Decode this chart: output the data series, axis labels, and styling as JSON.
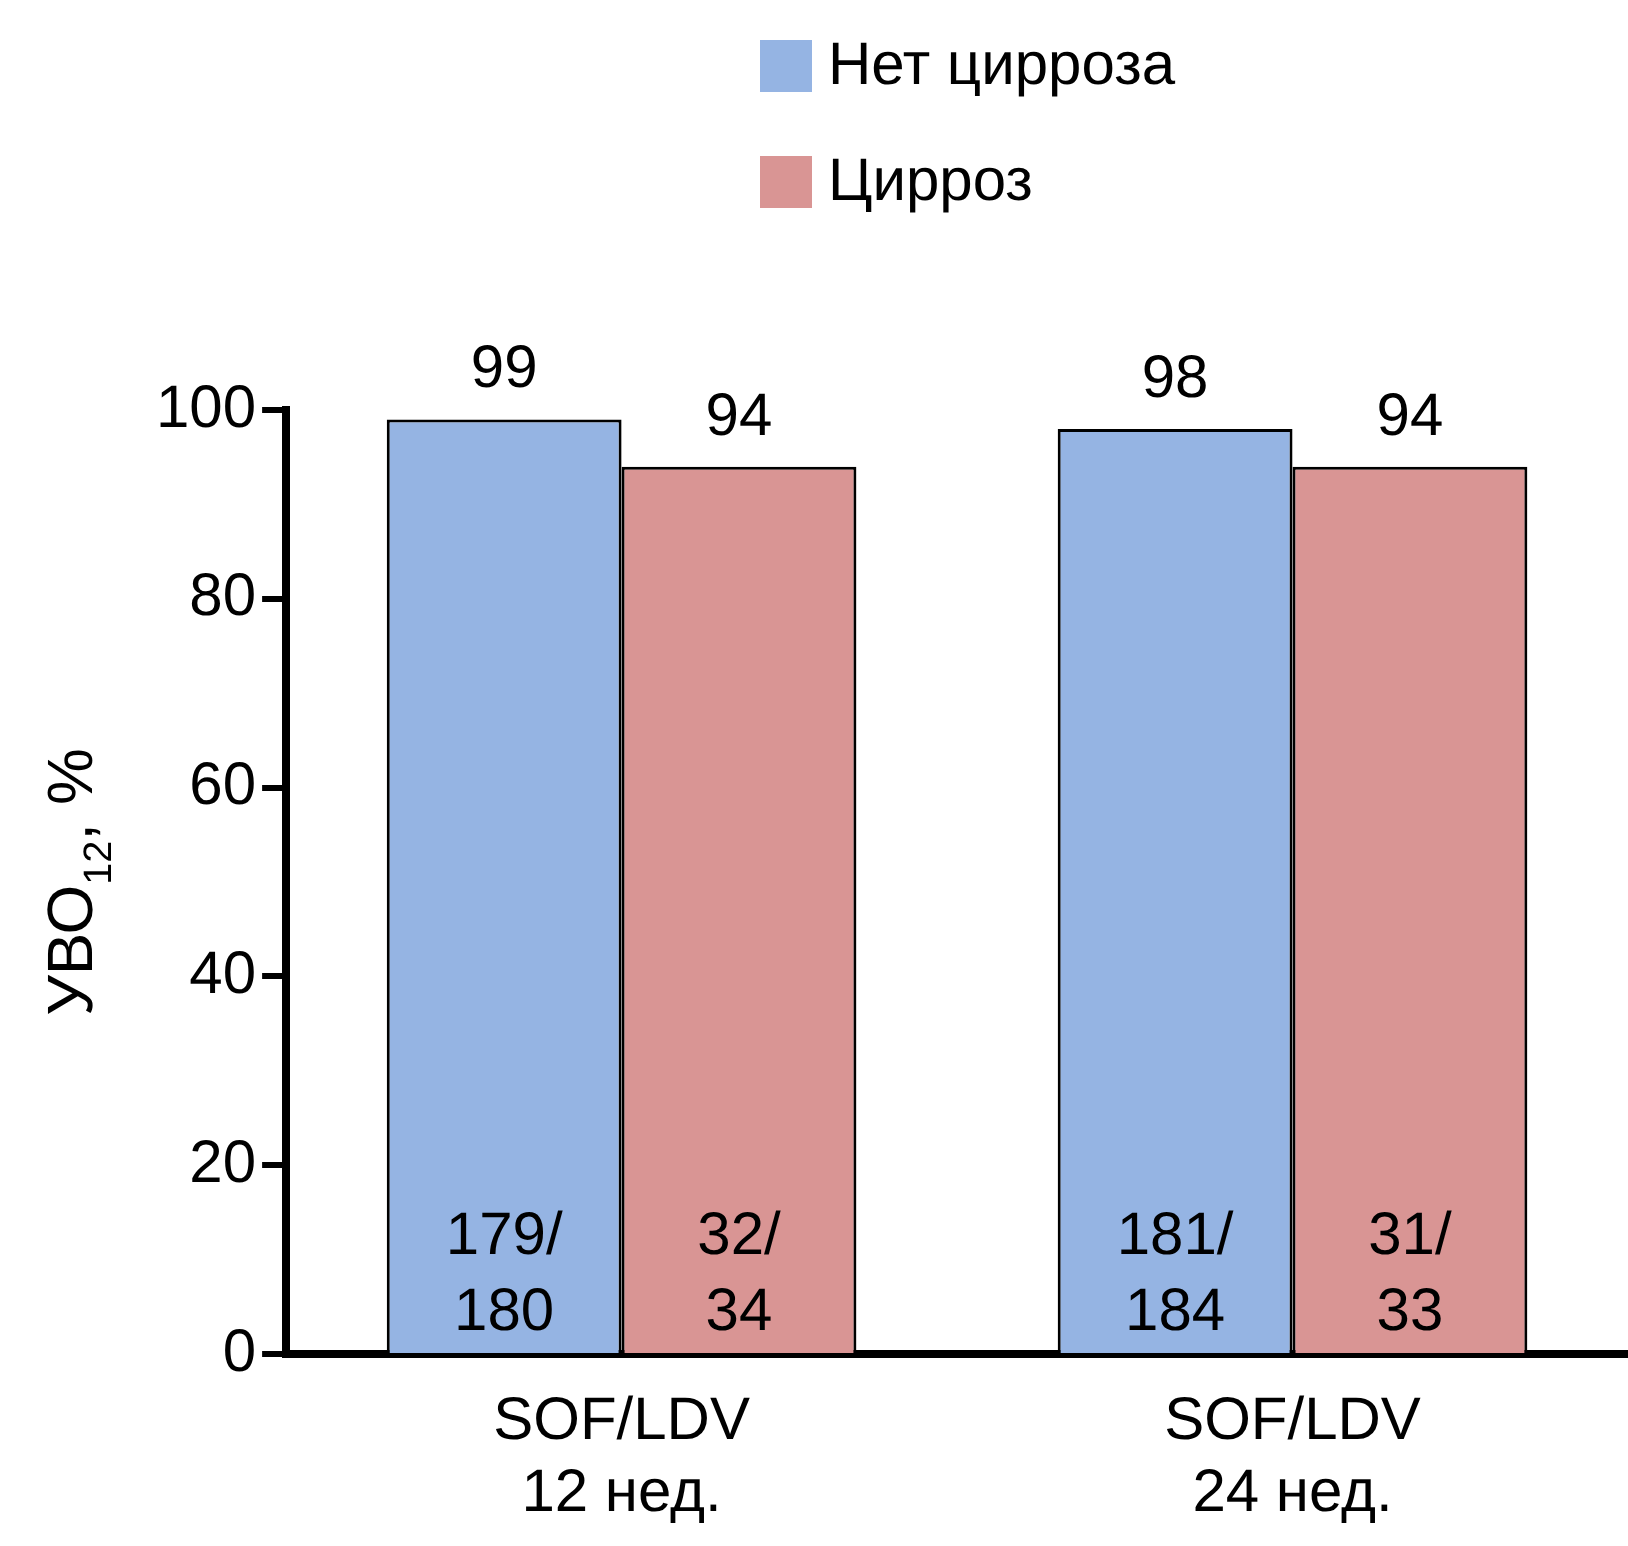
{
  "chart_data": {
    "type": "bar",
    "ylabel": "УВО$_{12}$, %",
    "categories": [
      "SOF/LDV 12 нед.",
      "SOF/LDV 24 нед."
    ],
    "series": [
      {
        "name": "Нет цирроза",
        "color": "#95b4e3",
        "values": [
          99,
          98
        ]
      },
      {
        "name": "Цирроз",
        "color": "#d99594",
        "values": [
          94,
          94
        ]
      }
    ],
    "ylim": [
      0,
      100
    ],
    "yticks": [
      0,
      20,
      40,
      60,
      80,
      100
    ],
    "grid": false,
    "legend": "top",
    "data_labels": true,
    "annotations": [
      "179/180",
      "181/184",
      "32/34",
      "31/33"
    ]
  }
}
